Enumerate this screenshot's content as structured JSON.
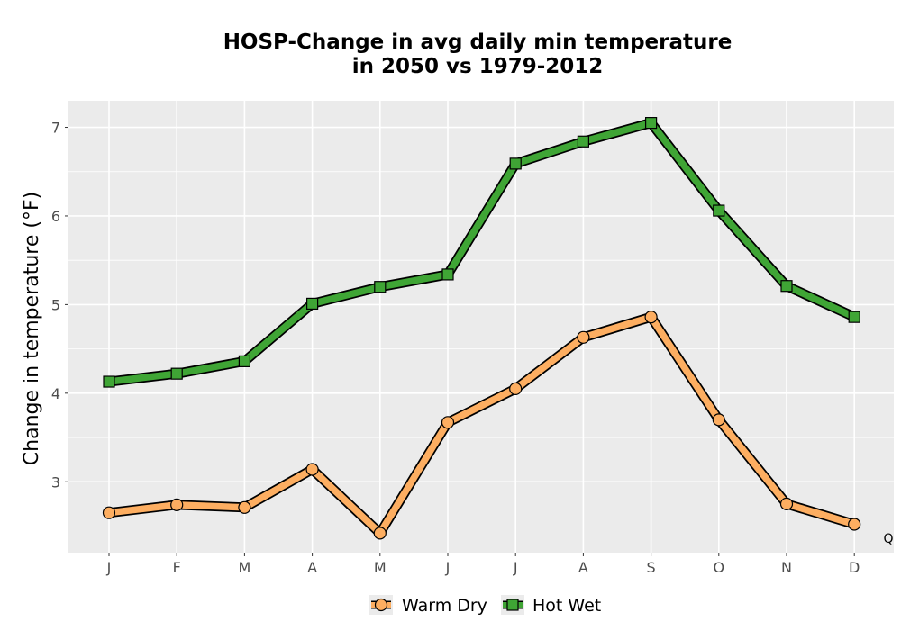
{
  "chart_data": {
    "type": "line",
    "title_line1": "HOSP-Change in avg daily min temperature",
    "title_line2": "in 2050 vs 1979-2012",
    "xlabel": "",
    "ylabel": "Change in temperature (°F)",
    "categories": [
      "J",
      "F",
      "M",
      "A",
      "M",
      "J",
      "J",
      "A",
      "S",
      "O",
      "N",
      "D"
    ],
    "ylim": [
      2.2,
      7.3
    ],
    "yticks": [
      3,
      4,
      5,
      6,
      7
    ],
    "grid": true,
    "legend_position": "bottom",
    "corner_label": "Q",
    "series": [
      {
        "name": "Warm Dry",
        "marker": "circle",
        "color": "#FDAE61",
        "values": [
          2.65,
          2.74,
          2.71,
          3.14,
          2.42,
          3.67,
          4.05,
          4.63,
          4.86,
          3.7,
          2.75,
          2.52
        ]
      },
      {
        "name": "Hot Wet",
        "marker": "square",
        "color": "#3FA535",
        "values": [
          4.13,
          4.22,
          4.36,
          5.01,
          5.2,
          5.34,
          6.59,
          6.84,
          7.05,
          6.06,
          5.21,
          4.86
        ]
      }
    ]
  }
}
